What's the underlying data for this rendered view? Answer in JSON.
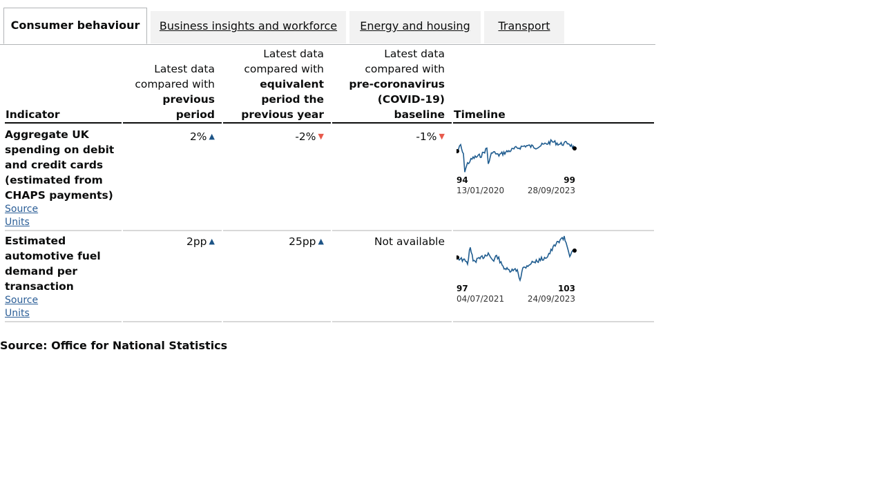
{
  "tabs": [
    {
      "label": "Consumer behaviour",
      "active": true
    },
    {
      "label": "Business insights and workforce",
      "active": false
    },
    {
      "label": "Energy and housing",
      "active": false
    },
    {
      "label": "Transport",
      "active": false
    }
  ],
  "table": {
    "headers": {
      "indicator": "Indicator",
      "prev_pre": "Latest data compared with",
      "prev_bold": "previous period",
      "year_pre": "Latest data compared with",
      "year_bold": "equivalent period the previous year",
      "base_pre": "Latest data compared with",
      "base_bold": "pre-coronavirus (COVID-19) baseline",
      "timeline": "Timeline"
    },
    "rows": [
      {
        "indicator": "Aggregate UK spending on debit and credit cards (estimated from CHAPS payments)",
        "source_link": "Source",
        "units_link": "Units",
        "prev": "2%",
        "prev_dir": "up",
        "year": "-2%",
        "year_dir": "down",
        "baseline": "-1%",
        "baseline_dir": "down",
        "spark": {
          "start_value": "94",
          "end_value": "99",
          "start_date": "13/01/2020",
          "end_date": "28/09/2023"
        }
      },
      {
        "indicator": "Estimated automotive fuel demand per transaction",
        "source_link": "Source",
        "units_link": "Units",
        "prev": "2pp",
        "prev_dir": "up",
        "year": "25pp",
        "year_dir": "up",
        "baseline": "Not available",
        "baseline_dir": "",
        "spark": {
          "start_value": "97",
          "end_value": "103",
          "start_date": "04/07/2021",
          "end_date": "24/09/2023"
        }
      }
    ]
  },
  "arrows": {
    "up": "▲",
    "down": "▼"
  },
  "colors": {
    "up_arrow": "#1d5486",
    "down_arrow": "#e7594b",
    "sparkline": "#1f5c8f",
    "link": "#2a5d96"
  },
  "footer": {
    "source": "Source: Office for National Statistics"
  }
}
